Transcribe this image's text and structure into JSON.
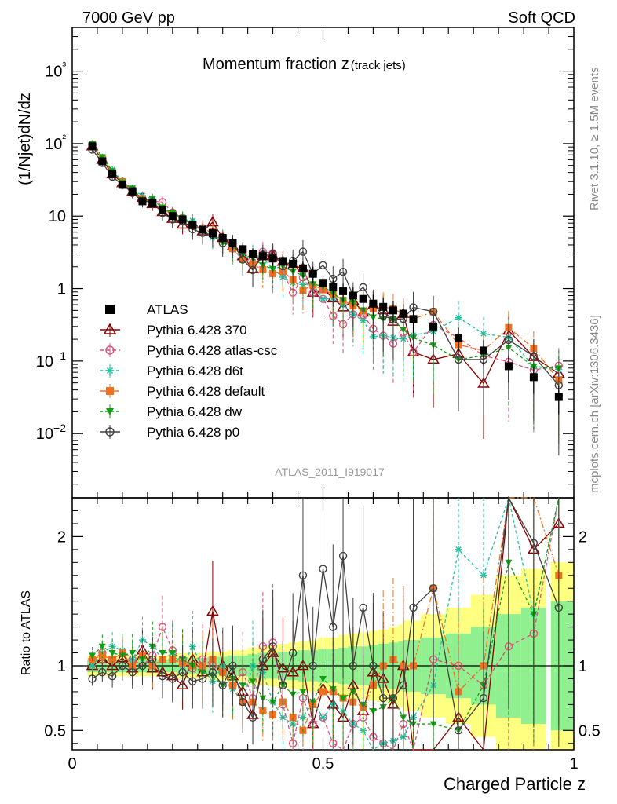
{
  "header": {
    "left": "7000 GeV pp",
    "right": "Soft QCD"
  },
  "side_labels": {
    "rivet": "Rivet 3.1.10, ≥ 1.5M events",
    "mcplots": "mcplots.cern.ch [arXiv:1306.3436]"
  },
  "chart_data": {
    "type": "scatter",
    "title": "Momentum fraction z",
    "title_suffix": "(track jets)",
    "analysis_tag": "ATLAS_2011_I919017",
    "xlabel": "Charged Particle z",
    "ylabel_main": "(1/Njet)dN/dz",
    "ylabel_ratio": "Ratio to ATLAS",
    "xlim": [
      0,
      1
    ],
    "ylim_main": [
      0.0013,
      4000
    ],
    "yscale_main": "log",
    "ylim_ratio": [
      0.35,
      2.3
    ],
    "x_ticks": [
      "0",
      "0.5",
      "1"
    ],
    "y_ticks_main": [
      "10−2",
      "10−1",
      "1",
      "10",
      "10²",
      "10³"
    ],
    "y_ticks_ratio": [
      "0.5",
      "1",
      "2"
    ],
    "legend_position": "left-middle",
    "x": [
      0.04,
      0.06,
      0.08,
      0.1,
      0.12,
      0.14,
      0.16,
      0.18,
      0.2,
      0.22,
      0.24,
      0.26,
      0.28,
      0.3,
      0.32,
      0.34,
      0.36,
      0.38,
      0.4,
      0.42,
      0.44,
      0.46,
      0.48,
      0.5,
      0.52,
      0.54,
      0.56,
      0.58,
      0.6,
      0.62,
      0.64,
      0.66,
      0.68,
      0.72,
      0.77,
      0.82,
      0.87,
      0.92,
      0.97
    ],
    "series": [
      {
        "name": "ATLAS",
        "color": "#000000",
        "marker": "square",
        "values": [
          92,
          57,
          38,
          27,
          22,
          16,
          15,
          12,
          10,
          9,
          7.5,
          6.5,
          5.8,
          5,
          4.2,
          3.5,
          3,
          2.8,
          2.6,
          2.4,
          2.2,
          1.9,
          1.6,
          1.2,
          1.05,
          0.92,
          0.8,
          0.72,
          0.62,
          0.56,
          0.5,
          0.45,
          0.38,
          0.3,
          0.21,
          0.14,
          0.085,
          0.06,
          0.032
        ]
      },
      {
        "name": "Pythia 6.428 370",
        "color": "#8b0000",
        "marker": "triangle",
        "ratio": [
          1.0,
          1.05,
          1.0,
          1.06,
          0.98,
          1.12,
          0.98,
          0.95,
          0.92,
          0.85,
          1.05,
          0.95,
          1.42,
          1.0,
          0.92,
          0.8,
          0.62,
          1.0,
          1.1,
          0.98,
          0.95,
          1.0,
          0.55,
          0.82,
          0.7,
          0.6,
          0.85,
          0.65,
          0.95,
          0.9,
          0.7,
          1.0,
          0.35,
          0.35,
          0.6,
          0.35,
          3.1,
          1.9,
          2.1
        ]
      },
      {
        "name": "Pythia 6.428 atlas-csc",
        "color": "#e0507a",
        "marker": "circle-open",
        "ratio": [
          1.05,
          1.1,
          1.05,
          1.1,
          1.05,
          1.0,
          1.08,
          1.3,
          1.12,
          1.05,
          0.98,
          1.05,
          1.0,
          0.95,
          0.85,
          0.95,
          0.75,
          1.15,
          1.18,
          0.7,
          0.4,
          0.75,
          0.55,
          0.6,
          0.4,
          0.35,
          0.55,
          0.6,
          0.45,
          0.4,
          0.35,
          0.55,
          0.35,
          1.05,
          1.0,
          0.85,
          1.15,
          1.25,
          2.7
        ]
      },
      {
        "name": "Pythia 6.428 d6t",
        "color": "#20c0a0",
        "marker": "asterisk",
        "ratio": [
          1.0,
          1.1,
          1.15,
          1.12,
          1.05,
          1.2,
          1.15,
          1.05,
          1.1,
          1.0,
          1.15,
          0.98,
          0.88,
          1.0,
          0.82,
          0.72,
          1.0,
          0.95,
          0.72,
          0.6,
          0.55,
          0.6,
          0.72,
          0.6,
          0.7,
          0.65,
          0.55,
          0.5,
          0.35,
          0.4,
          0.42,
          0.45,
          0.6,
          0.85,
          1.9,
          1.7,
          2.5,
          1.4,
          2.4
        ]
      },
      {
        "name": "Pythia 6.428 default",
        "color": "#f07020",
        "marker": "square",
        "ratio": [
          1.05,
          1.08,
          1.05,
          1.1,
          1.0,
          1.08,
          1.0,
          1.05,
          1.05,
          1.02,
          1.0,
          1.0,
          1.05,
          0.95,
          0.85,
          0.72,
          0.72,
          0.65,
          0.62,
          0.72,
          0.6,
          0.5,
          0.7,
          0.8,
          0.8,
          0.75,
          0.72,
          0.68,
          0.85,
          1.0,
          1.05,
          1.0,
          1.0,
          1.6,
          0.8,
          1.0,
          3.4,
          2.5,
          1.7
        ]
      },
      {
        "name": "Pythia 6.428 dw",
        "color": "#10a010",
        "marker": "triangle-down",
        "ratio": [
          1.08,
          1.15,
          1.1,
          1.08,
          1.1,
          1.05,
          1.15,
          1.1,
          1.1,
          1.05,
          1.0,
          0.95,
          0.92,
          0.85,
          0.9,
          0.85,
          0.88,
          0.75,
          0.72,
          0.85,
          0.78,
          0.8,
          0.72,
          0.9,
          0.82,
          0.75,
          0.8,
          0.7,
          0.65,
          0.68,
          0.75,
          0.6,
          0.55,
          0.55,
          0.5,
          0.85,
          1.8,
          1.4,
          2.5
        ]
      },
      {
        "name": "Pythia 6.428 p0",
        "color": "#404040",
        "marker": "circle-open",
        "ratio": [
          0.9,
          0.95,
          0.92,
          1.0,
          0.95,
          1.0,
          1.05,
          0.92,
          0.9,
          0.95,
          0.88,
          0.9,
          0.95,
          0.85,
          1.0,
          0.72,
          0.6,
          1.05,
          1.15,
          0.85,
          1.1,
          1.7,
          1.0,
          1.75,
          1.3,
          1.85,
          1.0,
          1.45,
          1.0,
          0.75,
          0.75,
          0.85,
          1.45,
          1.6,
          0.5,
          0.75,
          2.3,
          1.95,
          1.45
        ]
      }
    ],
    "band_inner": [
      0.05,
      0.05,
      0.05,
      0.05,
      0.05,
      0.05,
      0.05,
      0.05,
      0.05,
      0.06,
      0.06,
      0.06,
      0.07,
      0.07,
      0.08,
      0.08,
      0.09,
      0.1,
      0.1,
      0.11,
      0.11,
      0.12,
      0.12,
      0.13,
      0.13,
      0.14,
      0.15,
      0.15,
      0.16,
      0.17,
      0.18,
      0.19,
      0.2,
      0.22,
      0.25,
      0.3,
      0.4,
      0.45,
      0.5
    ],
    "band_outer": [
      0.08,
      0.08,
      0.08,
      0.08,
      0.08,
      0.08,
      0.08,
      0.08,
      0.08,
      0.1,
      0.1,
      0.1,
      0.11,
      0.11,
      0.12,
      0.12,
      0.14,
      0.15,
      0.16,
      0.17,
      0.18,
      0.19,
      0.2,
      0.22,
      0.22,
      0.24,
      0.25,
      0.26,
      0.27,
      0.28,
      0.3,
      0.32,
      0.35,
      0.4,
      0.45,
      0.55,
      0.7,
      0.75,
      0.8
    ]
  }
}
